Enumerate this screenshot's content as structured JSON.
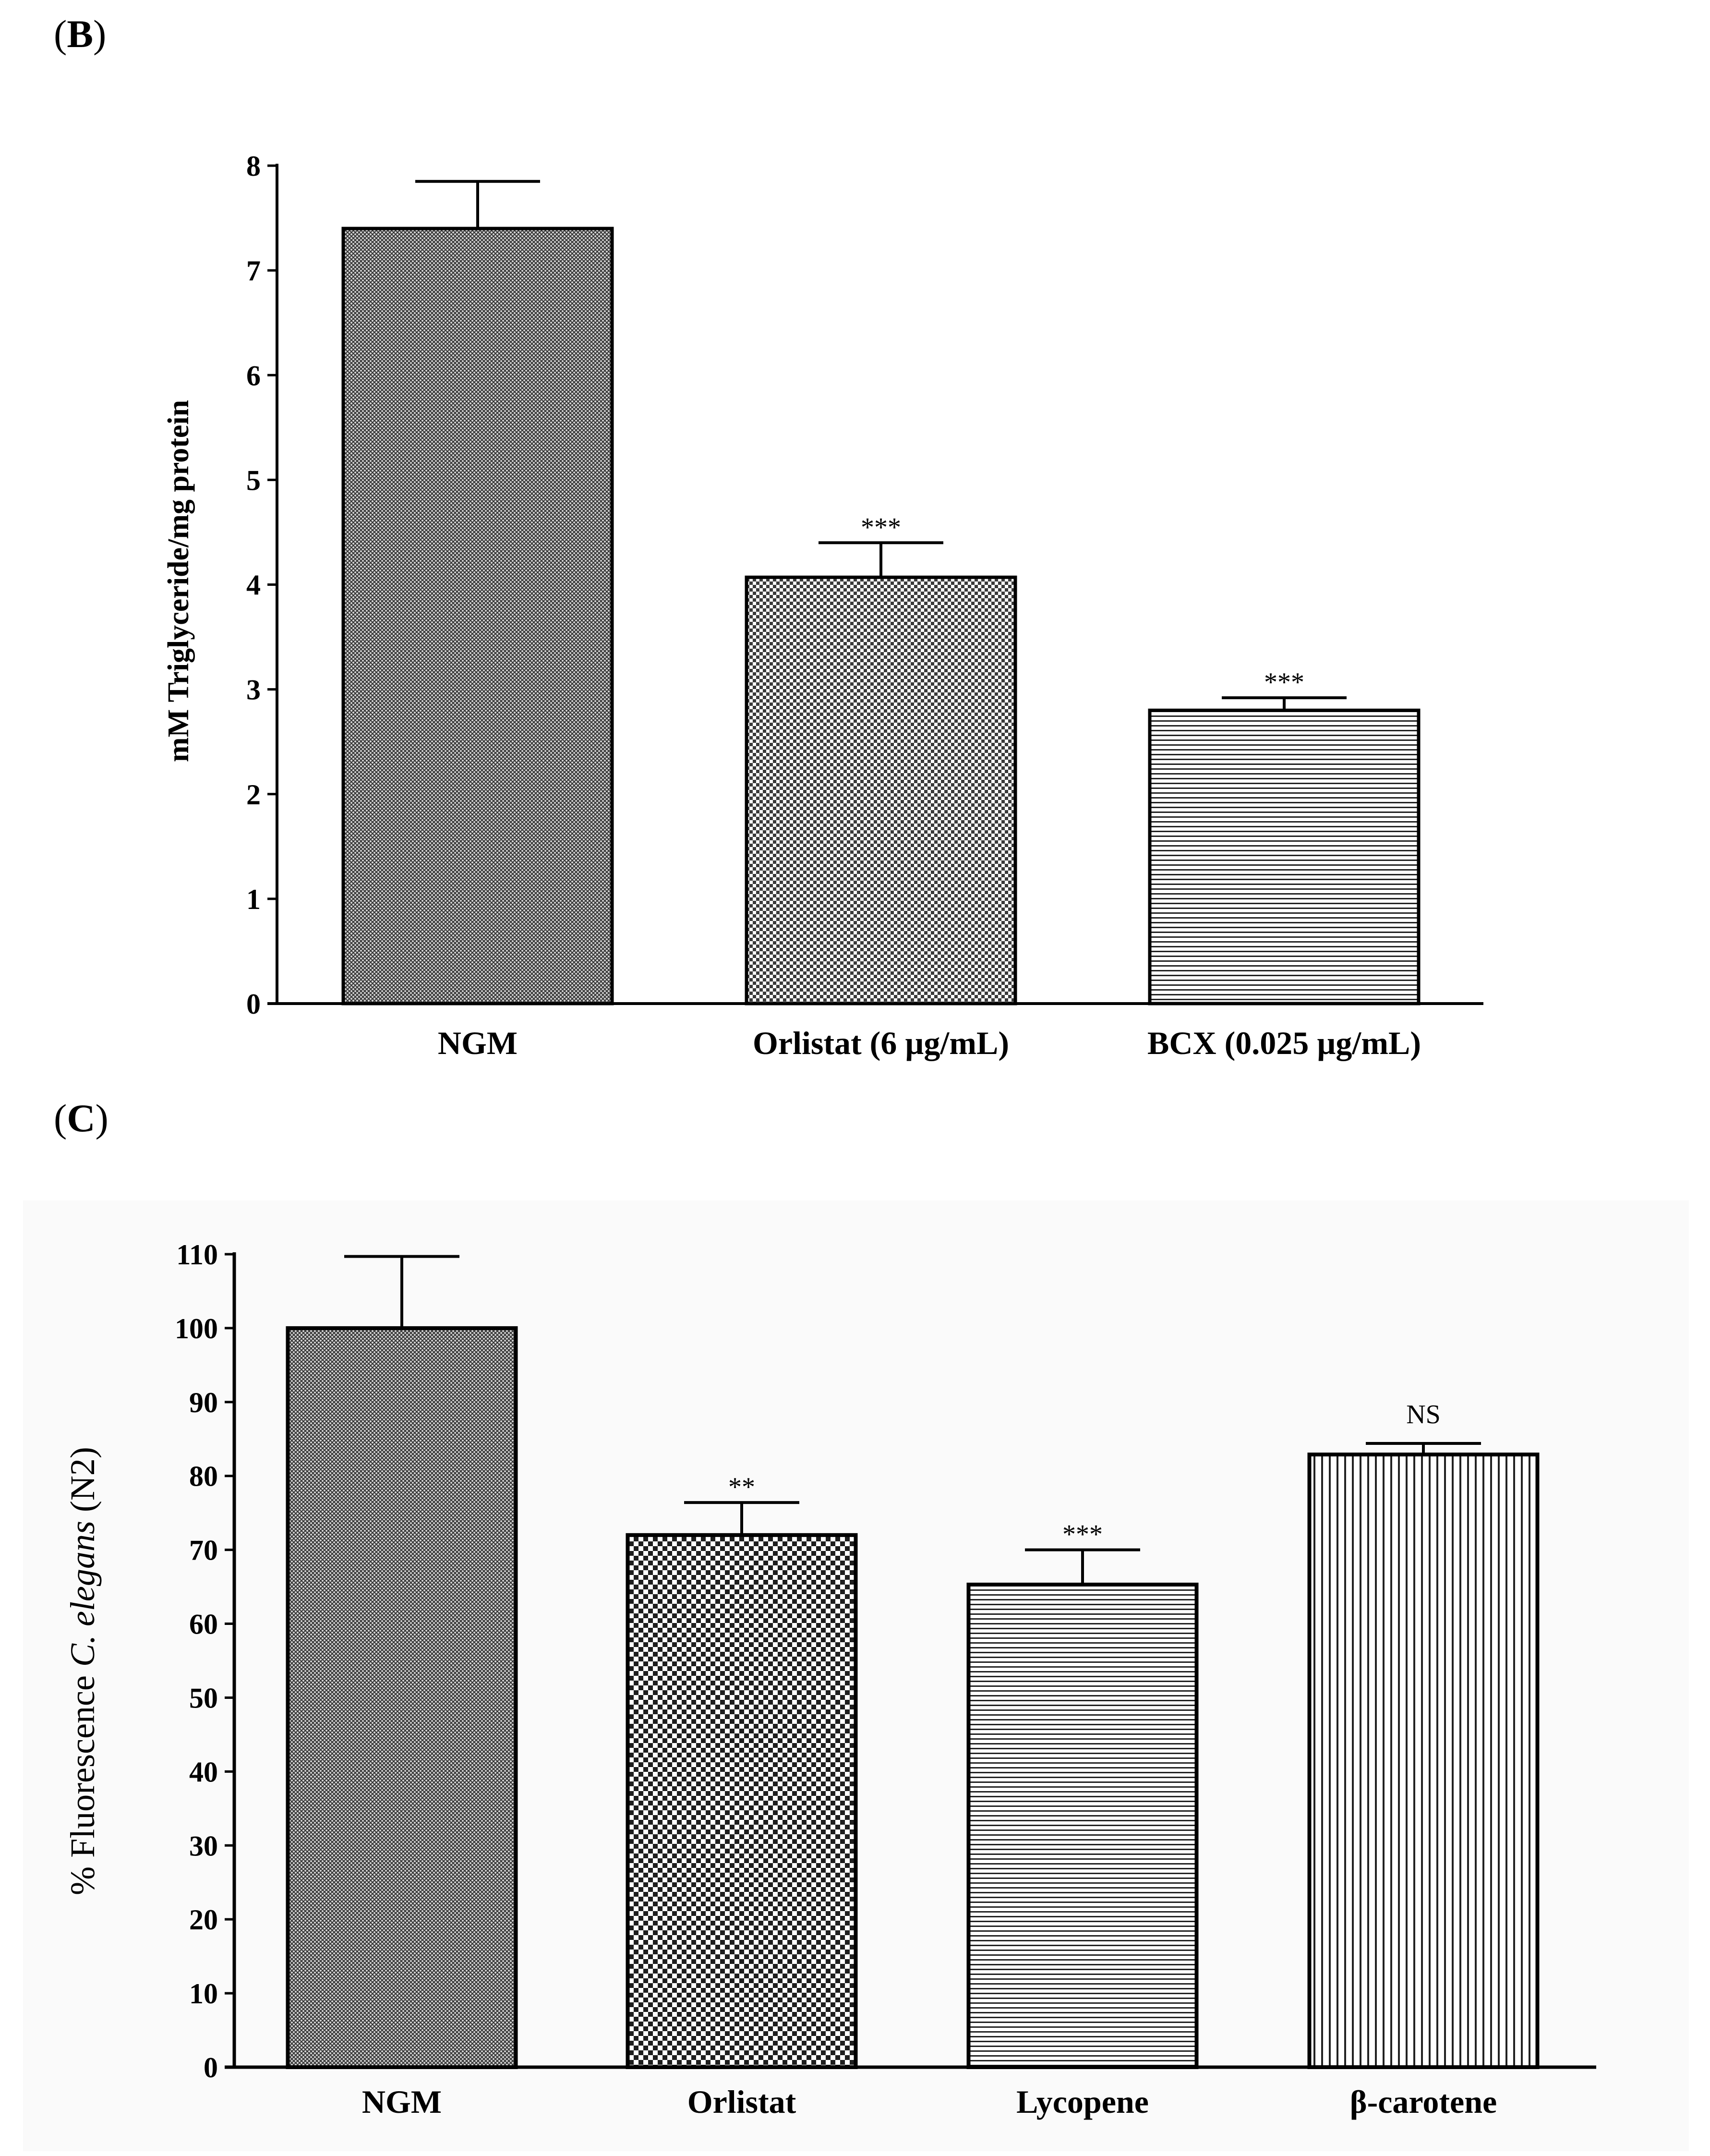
{
  "figure": {
    "panels": [
      {
        "letter_open": "(",
        "letter": "B",
        "letter_close": ")"
      },
      {
        "letter_open": "(",
        "letter": "C",
        "letter_close": ")"
      }
    ]
  },
  "chart_data": [
    {
      "type": "bar",
      "panel": "B",
      "title": "",
      "xlabel": "",
      "ylabel": "mM Triglyceride/mg protein",
      "ylim": [
        0,
        8
      ],
      "yticks": [
        0,
        1,
        2,
        3,
        4,
        5,
        6,
        7,
        8
      ],
      "categories": [
        "NGM",
        "Orlistat (6  µg/mL)",
        "BCX (0.025  µg/mL)"
      ],
      "values": [
        7.4,
        4.07,
        2.8
      ],
      "errors": [
        0.45,
        0.33,
        0.12
      ],
      "annotations": [
        "",
        "***",
        "***"
      ],
      "patterns": [
        "dense-crosshatch",
        "checker",
        "horizontal-lines"
      ],
      "grid": false
    },
    {
      "type": "bar",
      "panel": "C",
      "title": "",
      "xlabel": "",
      "ylabel_parts": [
        "% Fluorescence ",
        "C. elegans",
        " (N2)"
      ],
      "ylim": [
        0,
        110
      ],
      "yticks": [
        0,
        10,
        20,
        30,
        40,
        50,
        60,
        70,
        80,
        90,
        100,
        110
      ],
      "categories": [
        "NGM",
        "Orlistat",
        "Lycopene",
        "β-carotene"
      ],
      "values": [
        100,
        72,
        65.3,
        82.9
      ],
      "errors": [
        9.7,
        4.4,
        4.7,
        1.5
      ],
      "annotations": [
        "",
        "**",
        "***",
        "NS"
      ],
      "patterns": [
        "dense-crosshatch",
        "checker-bold",
        "horizontal-lines",
        "vertical-lines"
      ],
      "grid": false
    }
  ],
  "colors": {
    "ink": "#000000",
    "paper": "#ffffff",
    "panel_c_background": "#fafafa"
  }
}
